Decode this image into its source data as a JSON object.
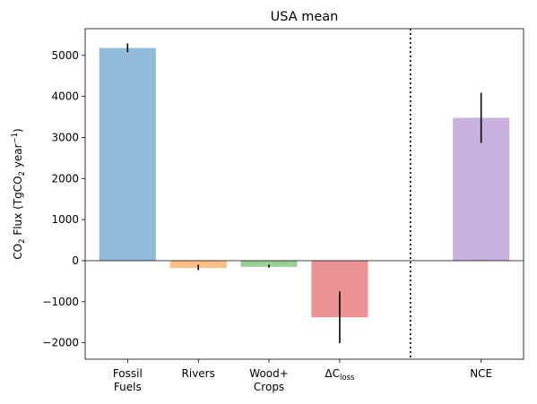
{
  "chart_data": {
    "type": "bar",
    "title": "USA mean",
    "ylabel": {
      "main": "CO",
      "sub1": "2",
      "mid": " Flux (TgCO",
      "sub2": "2",
      "unit": " year",
      "sup": "−1",
      "close": ")"
    },
    "categories": [
      {
        "lines": [
          "Fossil",
          "Fuels"
        ]
      },
      {
        "lines": [
          "Rivers"
        ]
      },
      {
        "lines": [
          "Wood+",
          "Crops"
        ]
      },
      {
        "lines": [
          "ΔC"
        ],
        "sub": "loss"
      },
      {
        "lines": [
          "NCE"
        ]
      }
    ],
    "x_positions": [
      0,
      1,
      2,
      3,
      5
    ],
    "values": [
      5180,
      -180,
      -150,
      -1380,
      3480
    ],
    "error_low": [
      5080,
      -230,
      -170,
      -2010,
      2870
    ],
    "error_high": [
      5290,
      -100,
      -100,
      -750,
      4090
    ],
    "colors": [
      "#8fbad9",
      "#fdbf86",
      "#98cf93",
      "#ea9294",
      "#c9b1de"
    ],
    "ylim": [
      -2400,
      5650
    ],
    "yticks": [
      -2000,
      -1000,
      0,
      1000,
      2000,
      3000,
      4000,
      5000
    ],
    "ytick_labels": [
      "−2000",
      "−1000",
      "0",
      "1000",
      "2000",
      "3000",
      "4000",
      "5000"
    ],
    "divider_x": 4,
    "zero_line": true,
    "grid": false
  }
}
